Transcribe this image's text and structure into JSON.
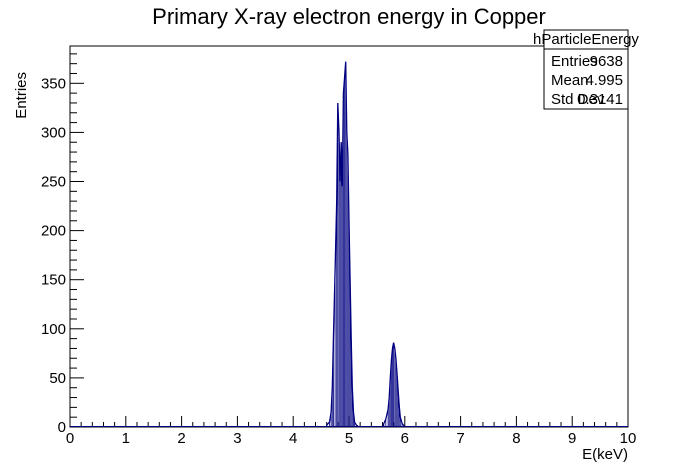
{
  "chart_data": {
    "type": "histogram",
    "title": "Primary X-ray electron energy in Copper",
    "xlabel": "E(keV)",
    "ylabel": "Entries",
    "xlim": [
      0,
      10
    ],
    "ylim": [
      0,
      388
    ],
    "x_ticks": [
      "0",
      "1",
      "2",
      "3",
      "4",
      "5",
      "6",
      "7",
      "8",
      "9",
      "10"
    ],
    "y_ticks": [
      "0",
      "50",
      "100",
      "150",
      "200",
      "250",
      "300",
      "350"
    ],
    "grid": false,
    "legend": "none",
    "line_color": "#000080",
    "series": [
      {
        "x": [
          4.6,
          4.65,
          4.68,
          4.7,
          4.72,
          4.75,
          4.78,
          4.8,
          4.82,
          4.84,
          4.86,
          4.88,
          4.9,
          4.92,
          4.94,
          4.96,
          4.98,
          5.0,
          5.02,
          5.04,
          5.06,
          5.08,
          5.1,
          5.13,
          5.18,
          5.62,
          5.66,
          5.7,
          5.72,
          5.74,
          5.76,
          5.78,
          5.8,
          5.82,
          5.84,
          5.86,
          5.88,
          5.9,
          5.92,
          5.95,
          6.0
        ],
        "y": [
          2,
          5,
          15,
          40,
          90,
          160,
          230,
          330,
          300,
          250,
          290,
          245,
          340,
          355,
          372,
          300,
          278,
          210,
          150,
          90,
          40,
          15,
          5,
          2,
          0,
          3,
          8,
          18,
          30,
          50,
          68,
          80,
          86,
          80,
          70,
          55,
          38,
          22,
          10,
          4,
          0
        ]
      }
    ]
  },
  "stats_box": {
    "name": "hParticleEnergy",
    "rows": [
      {
        "label": "Entries",
        "value": "9638"
      },
      {
        "label": "Mean",
        "value": "4.995"
      },
      {
        "label": "Std Dev",
        "value": "0.3141"
      }
    ]
  }
}
